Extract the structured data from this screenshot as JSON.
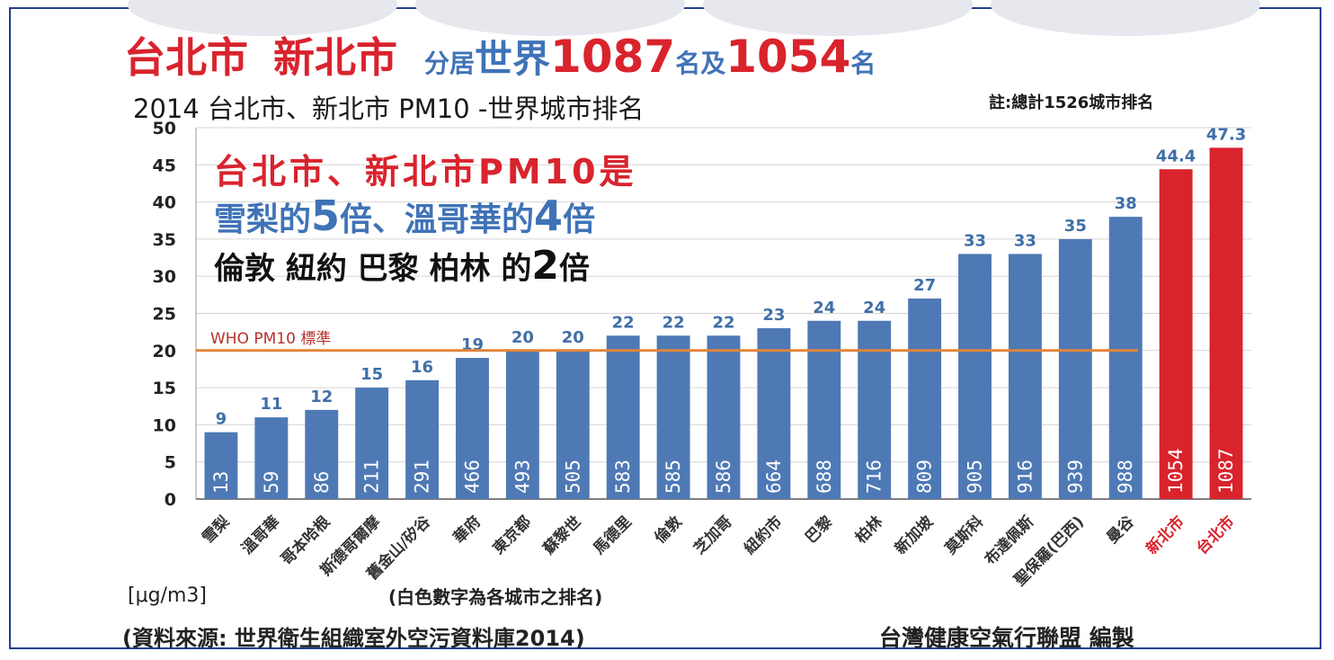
{
  "heading": {
    "part1": "台北市",
    "part2": "新北市",
    "part3": "分居",
    "part4": "世界",
    "part5": "1087",
    "part6": "名及",
    "part7": "1054",
    "part8": "名"
  },
  "subtitle": "2014  台北市、新北市 PM10 -世界城市排名",
  "note": "註:總計1526城市排名",
  "chart_data": {
    "type": "bar",
    "ylim": [
      0,
      50
    ],
    "yticks": [
      0,
      5,
      10,
      15,
      20,
      25,
      30,
      35,
      40,
      45,
      50
    ],
    "categories": [
      "雪梨",
      "溫哥華",
      "哥本哈根",
      "斯德哥爾摩",
      "舊金山/矽谷",
      "華府",
      "東京都",
      "蘇黎世",
      "馬德里",
      "倫敦",
      "芝加哥",
      "紐約市",
      "巴黎",
      "柏林",
      "新加坡",
      "莫斯科",
      "布達佩斯",
      "聖保羅(巴西)",
      "曼谷",
      "新北市",
      "台北市"
    ],
    "values": [
      9,
      11,
      12,
      15,
      16,
      19,
      20,
      20,
      22,
      22,
      22,
      23,
      24,
      24,
      27,
      33,
      33,
      35,
      38,
      44.4,
      47.3
    ],
    "ranks": [
      13,
      59,
      86,
      211,
      291,
      466,
      493,
      505,
      583,
      585,
      586,
      664,
      688,
      716,
      809,
      905,
      916,
      939,
      988,
      1054,
      1087
    ],
    "highlight": [
      false,
      false,
      false,
      false,
      false,
      false,
      false,
      false,
      false,
      false,
      false,
      false,
      false,
      false,
      false,
      false,
      false,
      false,
      false,
      true,
      true
    ],
    "reference_line": {
      "value": 20,
      "label": "WHO PM10 標準"
    },
    "ylabel": "[μg/m3]",
    "rank_note": "(白色數字為各城市之排名)",
    "colors": {
      "bar": "#4e79b5",
      "highlight": "#d9232d",
      "value_label": "#3f6fa8",
      "ref_line": "#e0853a",
      "ref_label": "#b5322b",
      "rank": "#ffffff"
    }
  },
  "callout": {
    "line1": "台北市、新北市PM10是",
    "line2a": "雪梨的",
    "line2b": "5",
    "line2c": "倍、溫哥華的",
    "line2d": "4",
    "line2e": "倍",
    "line3a": "倫敦  紐約  巴黎  柏林  的",
    "line3b": "2",
    "line3c": "倍"
  },
  "footer": {
    "source": "(資料來源: 世界衛生組織室外空污資料庫2014)",
    "author": "台灣健康空氣行聯盟 編製"
  }
}
